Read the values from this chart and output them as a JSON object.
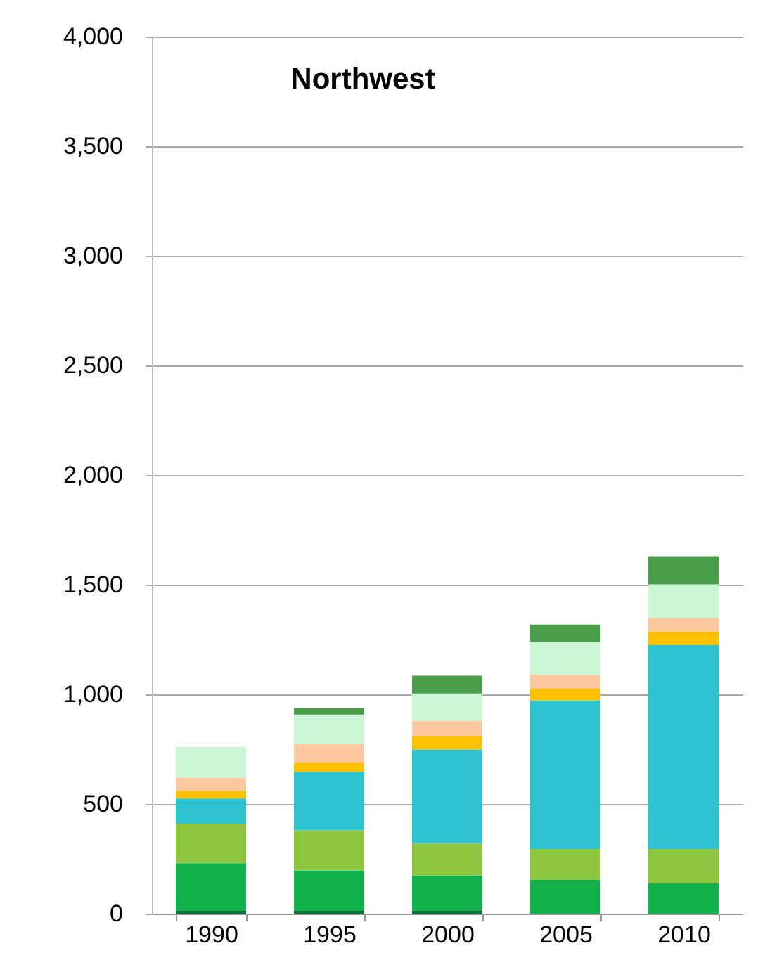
{
  "chart_data": {
    "type": "bar",
    "title": "Northwest",
    "stacked": true,
    "categories": [
      "1990",
      "1995",
      "2000",
      "2005",
      "2010"
    ],
    "series": [
      {
        "color": "#007a33",
        "values": [
          15,
          15,
          15,
          0,
          0
        ]
      },
      {
        "color": "#10b04a",
        "values": [
          215,
          182,
          160,
          154,
          139
        ]
      },
      {
        "color": "#8cc63f",
        "values": [
          180,
          183,
          145,
          141,
          156
        ]
      },
      {
        "color": "#2ec4cf",
        "values": [
          115,
          267,
          428,
          677,
          929
        ]
      },
      {
        "color": "#ffc000",
        "values": [
          35,
          41,
          60,
          54,
          62
        ]
      },
      {
        "color": "#fbc8a0",
        "values": [
          60,
          86,
          72,
          64,
          60
        ]
      },
      {
        "color": "#ccf7d6",
        "values": [
          140,
          134,
          124,
          149,
          156
        ]
      },
      {
        "color": "#4a9e4a",
        "values": [
          0,
          28,
          81,
          79,
          128
        ]
      }
    ],
    "ylim": [
      0,
      4000
    ],
    "yticks": [
      0,
      {
        "value": 500,
        "label": "500"
      },
      {
        "value": 1000,
        "label": "1,000"
      },
      {
        "value": 1500,
        "label": "1,500"
      },
      {
        "value": 2000,
        "label": "2,000"
      },
      {
        "value": 2500,
        "label": "2,500"
      },
      {
        "value": 3000,
        "label": "3,000"
      },
      {
        "value": 3500,
        "label": "3,500"
      },
      {
        "value": 4000,
        "label": "4,000"
      }
    ],
    "grid": "y",
    "legend": false
  }
}
